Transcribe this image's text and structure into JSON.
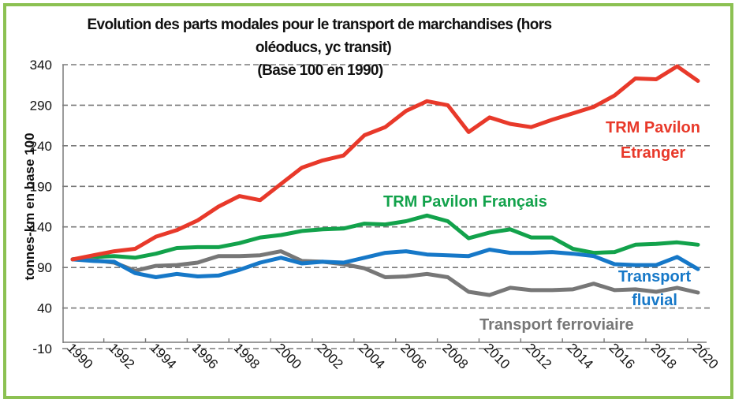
{
  "chart_data": {
    "type": "line",
    "title_lines": [
      "Evolution des parts modales pour le transport de marchandises (hors",
      "oléoducs, yc transit)",
      "(Base 100 en 1990)"
    ],
    "title": "Evolution des parts modales pour le transport de marchandises (hors oléoducs, yc transit) (Base 100 en 1990)",
    "xlabel": "",
    "ylabel": "tonnes-km en base 100",
    "x": [
      1990,
      1991,
      1992,
      1993,
      1994,
      1995,
      1996,
      1997,
      1998,
      1999,
      2000,
      2001,
      2002,
      2003,
      2004,
      2005,
      2006,
      2007,
      2008,
      2009,
      2010,
      2011,
      2012,
      2013,
      2014,
      2015,
      2016,
      2017,
      2018,
      2019,
      2020
    ],
    "xlim": [
      1990,
      2020
    ],
    "ylim": [
      -10,
      340
    ],
    "yticks": [
      -10,
      40,
      90,
      140,
      190,
      240,
      290,
      340
    ],
    "ytick_labels": [
      "-10",
      "40",
      "90",
      "140",
      "190",
      "240",
      "290",
      "340"
    ],
    "xticks": [
      1990,
      1992,
      1994,
      1996,
      1998,
      2000,
      2002,
      2004,
      2006,
      2008,
      2010,
      2012,
      2014,
      2016,
      2018,
      2020
    ],
    "xtick_labels": [
      "1990",
      "1992",
      "1994",
      "1996",
      "1998",
      "2000",
      "2002",
      "2004",
      "2006",
      "2008",
      "2010",
      "2012",
      "2014",
      "2016",
      "2018",
      "2020"
    ],
    "grid": "horizontal-dashed",
    "legend": "inline-labels",
    "series": [
      {
        "name": "TRM Pavilon Etranger",
        "label_lines": [
          "TRM Pavilon",
          "Etranger"
        ],
        "color": "#e8392a",
        "values": [
          100,
          105,
          110,
          113,
          128,
          136,
          148,
          165,
          178,
          173,
          193,
          213,
          222,
          228,
          253,
          263,
          283,
          295,
          290,
          257,
          275,
          267,
          263,
          272,
          280,
          288,
          302,
          323,
          322,
          338,
          320
        ]
      },
      {
        "name": "TRM Pavilon Français",
        "label_lines": [
          "TRM Pavilon Français"
        ],
        "color": "#12a24b",
        "values": [
          100,
          103,
          104,
          102,
          107,
          114,
          115,
          115,
          120,
          127,
          130,
          135,
          137,
          138,
          144,
          143,
          147,
          154,
          147,
          126,
          133,
          137,
          127,
          127,
          113,
          108,
          109,
          118,
          119,
          121,
          118
        ]
      },
      {
        "name": "Transport fluvial",
        "label_lines": [
          "Transport",
          "fluvial"
        ],
        "color": "#1678c8",
        "values": [
          100,
          98,
          97,
          83,
          78,
          82,
          79,
          80,
          87,
          96,
          102,
          95,
          97,
          96,
          102,
          108,
          110,
          106,
          105,
          104,
          112,
          108,
          108,
          109,
          107,
          104,
          94,
          93,
          93,
          103,
          88
        ]
      },
      {
        "name": "Transport ferroviaire",
        "label_lines": [
          "Transport ferroviaire"
        ],
        "color": "#777777",
        "values": [
          100,
          99,
          96,
          86,
          92,
          93,
          96,
          104,
          104,
          105,
          110,
          98,
          97,
          94,
          89,
          78,
          79,
          82,
          78,
          60,
          56,
          65,
          62,
          62,
          63,
          70,
          62,
          63,
          60,
          65,
          59
        ]
      }
    ]
  },
  "colors": {
    "frame": "#8cc152",
    "grid": "#7a7a7a",
    "axis": "#7a7a7a"
  }
}
